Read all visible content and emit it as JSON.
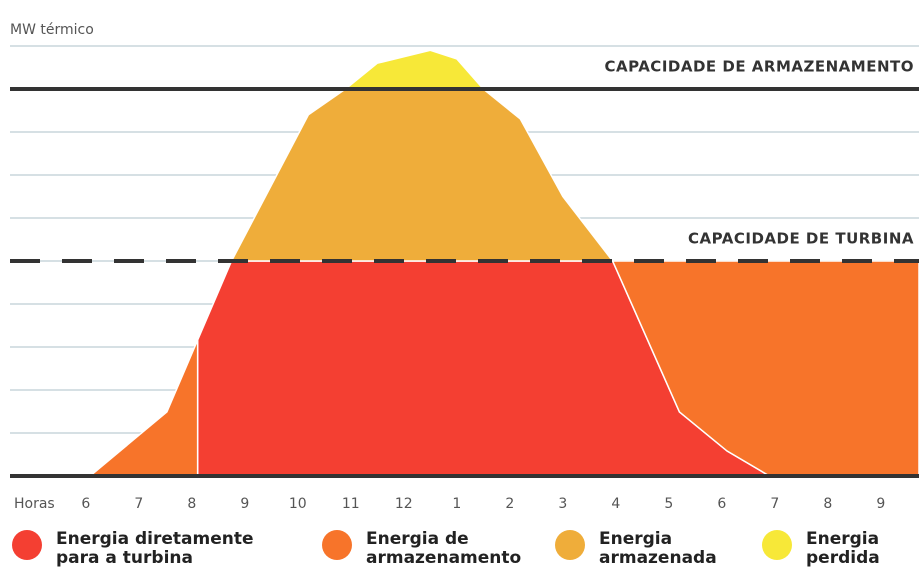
{
  "chart_data": {
    "type": "area",
    "y_label": "MW térmico",
    "x_label": "Horas",
    "categories": [
      "6",
      "7",
      "8",
      "9",
      "10",
      "11",
      "12",
      "1",
      "2",
      "3",
      "4",
      "5",
      "6",
      "7",
      "8",
      "9"
    ],
    "xlim": [
      -1.43,
      15.72
    ],
    "ylim": [
      0,
      10
    ],
    "yticks": [
      0,
      1,
      2,
      3,
      4,
      5,
      6,
      7,
      8,
      9,
      10
    ],
    "grid": true,
    "thresholds": [
      {
        "label": "CAPACIDADE DE ARMAZENAMENTO",
        "value": 9,
        "style": "solid"
      },
      {
        "label": "CAPACIDADE DE TURBINA",
        "value": 5,
        "style": "dashed"
      }
    ],
    "series": [
      {
        "name": "Energia diretamente para a turbina",
        "color": "#f43f32",
        "x": [
          2.11,
          2.11,
          2.75,
          9.94,
          11.2,
          12.1,
          12.9
        ],
        "values": [
          0,
          3.16,
          5,
          5,
          1.49,
          0.58,
          0
        ]
      },
      {
        "name": "Energia de armazenamento",
        "color": "#f7742a",
        "x": [
          0.08,
          1.53,
          2.11,
          2.11,
          null,
          9.94,
          15.72,
          15.72,
          12.9,
          12.1,
          11.2
        ],
        "values": [
          0,
          1.49,
          3.16,
          0,
          null,
          5,
          5,
          0,
          0,
          0.58,
          1.49
        ]
      },
      {
        "name": "Energia armazenada",
        "color": "#efad3a",
        "x": [
          2.75,
          4.2,
          4.9,
          7.5,
          8.2,
          9.0,
          9.94
        ],
        "values": [
          5,
          8.4,
          9,
          9,
          8.3,
          6.5,
          5
        ]
      },
      {
        "name": "Energia perdida",
        "color": "#f7e838",
        "x": [
          4.9,
          5.5,
          6.5,
          7.0,
          7.5
        ],
        "values": [
          9,
          9.6,
          9.9,
          9.7,
          9
        ]
      }
    ]
  }
}
